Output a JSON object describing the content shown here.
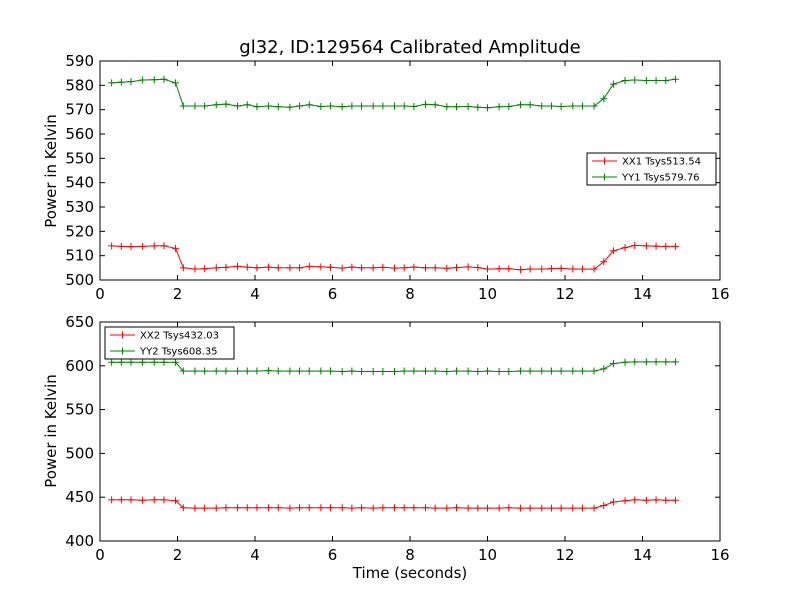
{
  "chart_data": [
    {
      "type": "line",
      "title": "gl32, ID:129564 Calibrated Amplitude",
      "xlabel": "",
      "ylabel": "Power in Kelvin",
      "xlim": [
        0,
        16
      ],
      "ylim": [
        500,
        590
      ],
      "xticks": [
        "0",
        "2",
        "4",
        "6",
        "8",
        "10",
        "12",
        "14",
        "16"
      ],
      "yticks": [
        "500",
        "510",
        "520",
        "530",
        "540",
        "550",
        "560",
        "570",
        "580",
        "590"
      ],
      "legend_position": "right",
      "x": [
        0.3,
        0.55,
        0.8,
        1.1,
        1.4,
        1.65,
        1.95,
        2.15,
        2.45,
        2.7,
        3.0,
        3.25,
        3.55,
        3.8,
        4.05,
        4.35,
        4.6,
        4.9,
        5.15,
        5.4,
        5.7,
        5.95,
        6.25,
        6.5,
        6.75,
        7.05,
        7.3,
        7.6,
        7.85,
        8.1,
        8.4,
        8.65,
        8.95,
        9.2,
        9.5,
        9.75,
        10.0,
        10.3,
        10.55,
        10.85,
        11.1,
        11.4,
        11.65,
        11.9,
        12.2,
        12.45,
        12.75,
        13.0,
        13.25,
        13.55,
        13.8,
        14.1,
        14.35,
        14.6,
        14.85
      ],
      "series": [
        {
          "name": "XX1 Tsys513.54",
          "color": "#ff0000",
          "values": [
            514,
            513.8,
            513.7,
            513.8,
            514,
            514.1,
            513,
            505,
            504.5,
            504.6,
            505,
            505.2,
            505.6,
            505.3,
            505,
            505.3,
            505,
            505,
            505,
            505.6,
            505.4,
            505.2,
            504.9,
            505.3,
            505,
            505,
            505.2,
            504.9,
            505,
            505.3,
            505,
            505,
            504.8,
            505.1,
            505.4,
            505.1,
            504.5,
            504.6,
            504.6,
            504.2,
            504.5,
            504.5,
            504.7,
            504.8,
            504.5,
            504.5,
            504.5,
            507.5,
            512,
            513.3,
            514.2,
            514,
            513.9,
            513.8,
            513.8
          ]
        },
        {
          "name": "YY1 Tsys579.76",
          "color": "#008000",
          "values": [
            581,
            581.3,
            581.5,
            582.2,
            582.3,
            582.5,
            581,
            571.5,
            571.5,
            571.5,
            572,
            572.3,
            571.5,
            572,
            571.2,
            571.5,
            571.2,
            571,
            571.5,
            572,
            571.3,
            571.5,
            571.2,
            571.5,
            571.5,
            571.5,
            571.5,
            571.5,
            571.5,
            571.3,
            572.2,
            572,
            571.2,
            571.2,
            571.3,
            571,
            570.8,
            571.2,
            571.3,
            572,
            572,
            571.5,
            571.5,
            571.3,
            571.5,
            571.5,
            571.5,
            574.5,
            580.5,
            582,
            582.2,
            582,
            582,
            582,
            582.5
          ]
        }
      ]
    },
    {
      "type": "line",
      "title": "",
      "xlabel": "Time (seconds)",
      "ylabel": "Power in Kelvin",
      "xlim": [
        0,
        16
      ],
      "ylim": [
        400,
        650
      ],
      "xticks": [
        "0",
        "2",
        "4",
        "6",
        "8",
        "10",
        "12",
        "14",
        "16"
      ],
      "yticks": [
        "400",
        "450",
        "500",
        "550",
        "600",
        "650"
      ],
      "legend_position": "top-left",
      "x": [
        0.3,
        0.55,
        0.8,
        1.1,
        1.4,
        1.65,
        1.95,
        2.15,
        2.45,
        2.7,
        3.0,
        3.25,
        3.55,
        3.8,
        4.05,
        4.35,
        4.6,
        4.9,
        5.15,
        5.4,
        5.7,
        5.95,
        6.25,
        6.5,
        6.75,
        7.05,
        7.3,
        7.6,
        7.85,
        8.1,
        8.4,
        8.65,
        8.95,
        9.2,
        9.5,
        9.75,
        10.0,
        10.3,
        10.55,
        10.85,
        11.1,
        11.4,
        11.65,
        11.9,
        12.2,
        12.45,
        12.75,
        13.0,
        13.25,
        13.55,
        13.8,
        14.1,
        14.35,
        14.6,
        14.85
      ],
      "series": [
        {
          "name": "XX2 Tsys432.03",
          "color": "#ff0000",
          "values": [
            447,
            447,
            447,
            446.5,
            447,
            447,
            446,
            438,
            437.5,
            437.5,
            437.5,
            438,
            438,
            438,
            438,
            438,
            438,
            437.5,
            438,
            438,
            438,
            438,
            438,
            437.5,
            438,
            437.5,
            438,
            438,
            438,
            438,
            438,
            437.5,
            437.5,
            438,
            437.5,
            437.5,
            437.5,
            437.5,
            438,
            437.5,
            437.5,
            437.5,
            437.5,
            437.5,
            437.5,
            437.5,
            437.5,
            440.5,
            444.5,
            446,
            447,
            446.5,
            447,
            446.5,
            446.5
          ]
        },
        {
          "name": "YY2 Tsys608.35",
          "color": "#008000",
          "values": [
            604,
            604,
            604,
            604,
            604,
            604,
            604,
            594,
            594,
            594,
            594,
            594,
            594,
            594,
            594,
            594.5,
            594,
            594,
            594,
            594,
            594,
            594,
            593.5,
            594,
            593.5,
            593.5,
            593.5,
            593.5,
            594,
            594,
            594,
            594,
            593.5,
            594,
            594,
            593.5,
            594,
            593.5,
            593.5,
            594,
            594,
            594,
            594,
            594,
            594,
            594,
            594,
            596.5,
            602.5,
            604,
            604.5,
            604.5,
            604.5,
            604.5,
            604.5
          ]
        }
      ]
    }
  ]
}
